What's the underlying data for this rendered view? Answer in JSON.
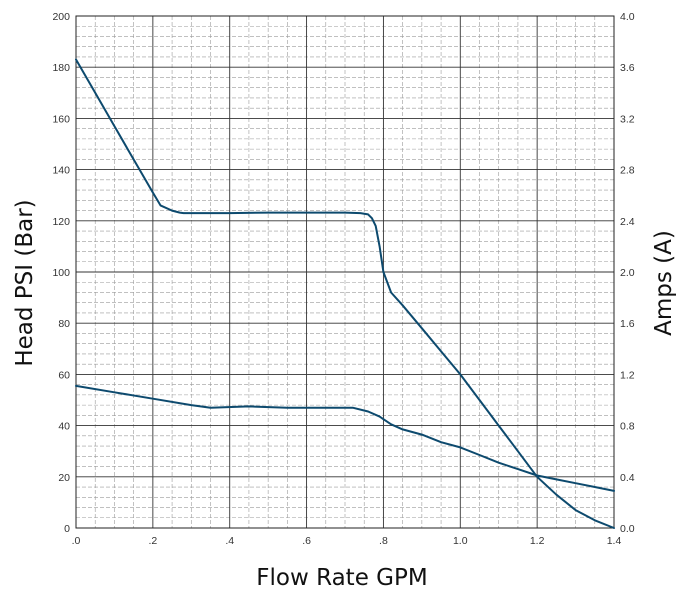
{
  "chart_data": {
    "type": "line",
    "xlabel": "Flow Rate GPM",
    "ylabel_left": "Head PSI (Bar)",
    "ylabel_right": "Amps (A)",
    "xlim": [
      0,
      1.4
    ],
    "ylim_left": [
      0,
      200
    ],
    "ylim_right": [
      0,
      4.0
    ],
    "x_ticks": [
      0,
      0.2,
      0.4,
      0.6,
      0.8,
      1.0,
      1.2,
      1.4
    ],
    "x_tick_labels": [
      ".0",
      ".2",
      ".4",
      ".6",
      ".8",
      "1.0",
      "1.2",
      "1.4"
    ],
    "y_left_ticks": [
      0,
      20,
      40,
      60,
      80,
      100,
      120,
      140,
      160,
      180,
      200
    ],
    "y_left_tick_labels": [
      "0",
      "20",
      "40",
      "60",
      "80",
      "100",
      "120",
      "140",
      "160",
      "180",
      "200"
    ],
    "y_right_ticks": [
      0,
      0.4,
      0.8,
      1.2,
      1.6,
      2.0,
      2.4,
      2.8,
      3.2,
      3.6,
      4.0
    ],
    "y_right_tick_labels": [
      "0.0",
      "0.4",
      "0.8",
      "1.2",
      "1.6",
      "2.0",
      "2.4",
      "2.8",
      "3.2",
      "3.6",
      "4.0"
    ],
    "grid": true,
    "line_color": "#0d4a6e",
    "series": [
      {
        "axis": "left",
        "x": [
          0,
          0.05,
          0.1,
          0.15,
          0.2,
          0.22,
          0.25,
          0.27,
          0.28,
          0.3,
          0.4,
          0.5,
          0.6,
          0.7,
          0.74,
          0.76,
          0.77,
          0.78,
          0.79,
          0.8,
          0.82,
          0.85,
          0.9,
          0.95,
          1.0,
          1.05,
          1.1,
          1.15,
          1.2,
          1.25,
          1.3,
          1.35,
          1.4
        ],
        "values": [
          183,
          170,
          157,
          144,
          131,
          126,
          124,
          123.2,
          123,
          123,
          123,
          123.2,
          123.2,
          123.2,
          123,
          122.5,
          121,
          118,
          110,
          100,
          92,
          87,
          78,
          69,
          60,
          50,
          40,
          30,
          20,
          13,
          7,
          3,
          0
        ]
      },
      {
        "axis": "right",
        "x": [
          0,
          0.1,
          0.2,
          0.3,
          0.35,
          0.45,
          0.55,
          0.65,
          0.72,
          0.76,
          0.79,
          0.82,
          0.85,
          0.9,
          0.95,
          1.0,
          1.05,
          1.1,
          1.15,
          1.2,
          1.25,
          1.3,
          1.35,
          1.4
        ],
        "values": [
          1.11,
          1.06,
          1.01,
          0.96,
          0.94,
          0.95,
          0.94,
          0.94,
          0.94,
          0.91,
          0.87,
          0.81,
          0.77,
          0.73,
          0.67,
          0.63,
          0.57,
          0.51,
          0.46,
          0.41,
          0.38,
          0.35,
          0.32,
          0.29
        ]
      }
    ]
  }
}
